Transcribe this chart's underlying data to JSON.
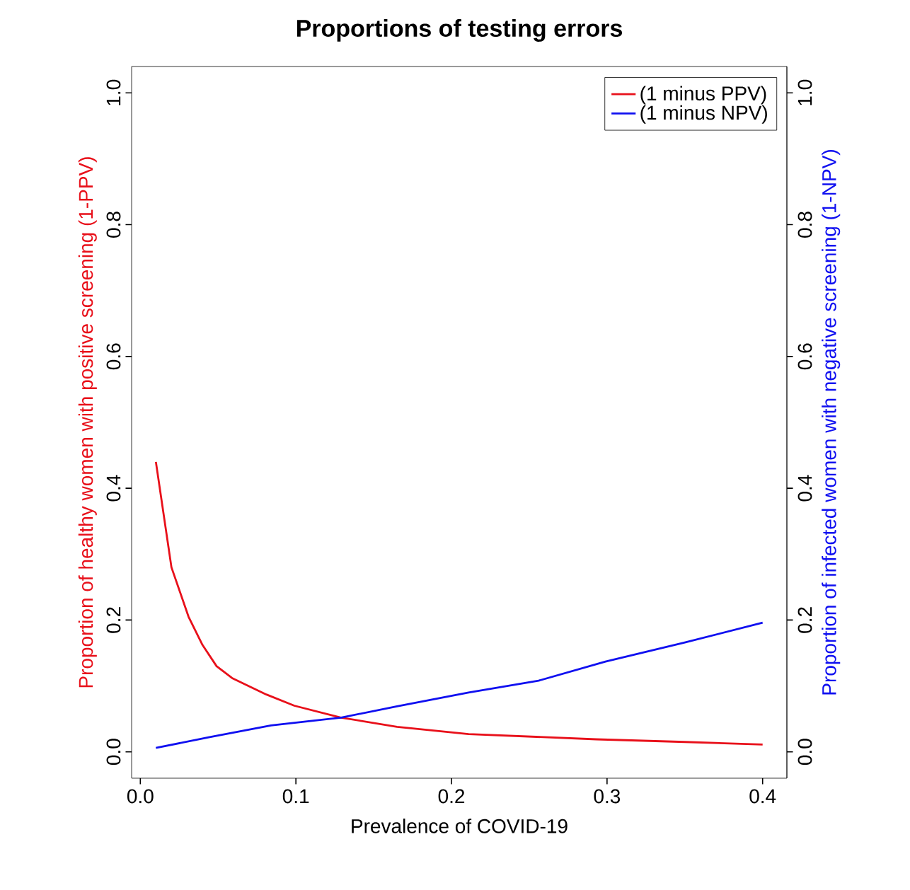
{
  "chart_data": {
    "type": "line",
    "title": "Proportions of testing errors",
    "xlabel": "Prevalence of COVID-19",
    "ylabel": "Proportion of healthy women with positive screening (1-PPV)",
    "y2label": "Proportion of infected women with negative screening (1-NPV)",
    "xlim": [
      -0.0056,
      0.4156
    ],
    "xticks": [
      {
        "value": 0,
        "label": "0.0"
      },
      0.1,
      0.2,
      0.3,
      0.4
    ],
    "ylim": [
      -0.04,
      1.04
    ],
    "yticks": [
      {
        "value": 0,
        "label": "0.0"
      },
      0.2,
      0.4,
      0.6,
      0.8,
      {
        "value": 1,
        "label": "1.0"
      }
    ],
    "y2lim": [
      -0.04,
      1.04
    ],
    "y2ticks": [
      {
        "value": 0,
        "label": "0.0"
      },
      0.2,
      0.4,
      0.6,
      0.8,
      {
        "value": 1,
        "label": "1.0"
      }
    ],
    "legend": "top right",
    "grid": false,
    "series": [
      {
        "name": "(1 minus PPV)",
        "color": "#e8101a",
        "x": [
          0.01,
          0.02,
          0.031,
          0.04,
          0.049,
          0.059,
          0.081,
          0.099,
          0.129,
          0.165,
          0.211,
          0.293,
          0.35,
          0.4
        ],
        "values": [
          0.44,
          0.28,
          0.205,
          0.162,
          0.13,
          0.112,
          0.087,
          0.07,
          0.052,
          0.038,
          0.027,
          0.019,
          0.015,
          0.011
        ]
      },
      {
        "name": "(1 minus NPV)",
        "color": "#1010f0",
        "axis": "y2",
        "x": [
          0.01,
          0.044,
          0.084,
          0.129,
          0.165,
          0.211,
          0.256,
          0.299,
          0.35,
          0.4
        ],
        "values": [
          0.006,
          0.022,
          0.04,
          0.052,
          0.069,
          0.09,
          0.108,
          0.137,
          0.166,
          0.196
        ]
      }
    ]
  }
}
